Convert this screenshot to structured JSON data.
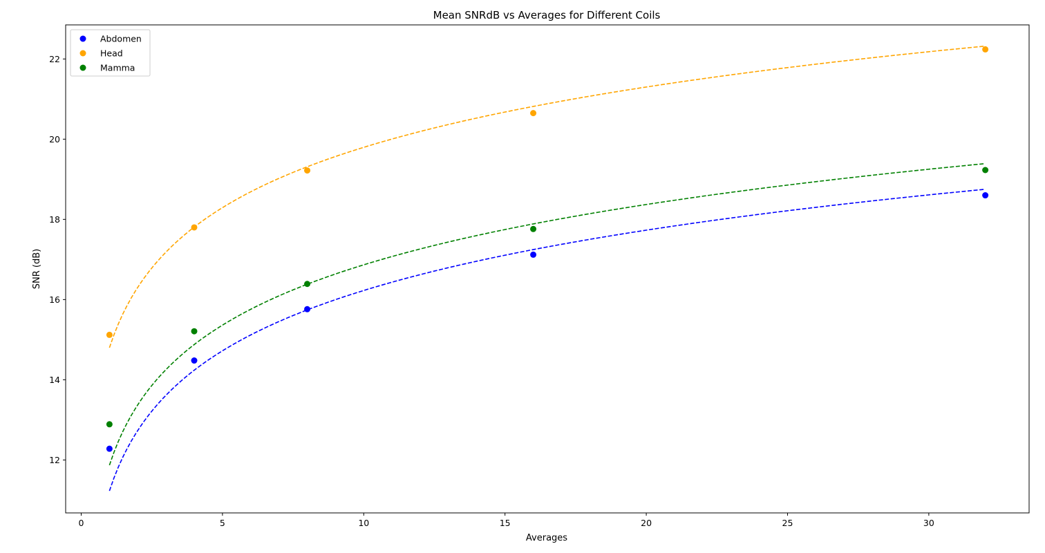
{
  "chart_data": {
    "type": "scatter",
    "title": "Mean SNRdB vs Averages for Different Coils",
    "xlabel": "Averages",
    "ylabel": "SNR (dB)",
    "xlim": [
      -0.55,
      33.55
    ],
    "ylim": [
      10.68,
      22.85
    ],
    "xticks": [
      "0",
      "5",
      "10",
      "15",
      "20",
      "25",
      "30"
    ],
    "yticks": [
      "12",
      "14",
      "16",
      "18",
      "20",
      "22"
    ],
    "grid": false,
    "legend_position": "top-left",
    "fit_style": "dashed logarithmic trend line",
    "series": [
      {
        "name": "Abdomen",
        "color": "#0000ff",
        "x": [
          1,
          4,
          8,
          16,
          32
        ],
        "y": [
          12.28,
          14.48,
          15.76,
          17.12,
          18.6
        ],
        "fit": {
          "a": 11.23,
          "b": 2.17
        }
      },
      {
        "name": "Head",
        "color": "#ffa500",
        "x": [
          1,
          4,
          8,
          16,
          32
        ],
        "y": [
          15.12,
          17.8,
          19.22,
          20.65,
          22.24
        ],
        "fit": {
          "a": 14.8,
          "b": 2.17
        }
      },
      {
        "name": "Mamma",
        "color": "#008000",
        "x": [
          1,
          4,
          8,
          16,
          32
        ],
        "y": [
          12.89,
          15.21,
          16.39,
          17.76,
          19.23
        ],
        "fit": {
          "a": 11.87,
          "b": 2.17
        }
      }
    ]
  }
}
